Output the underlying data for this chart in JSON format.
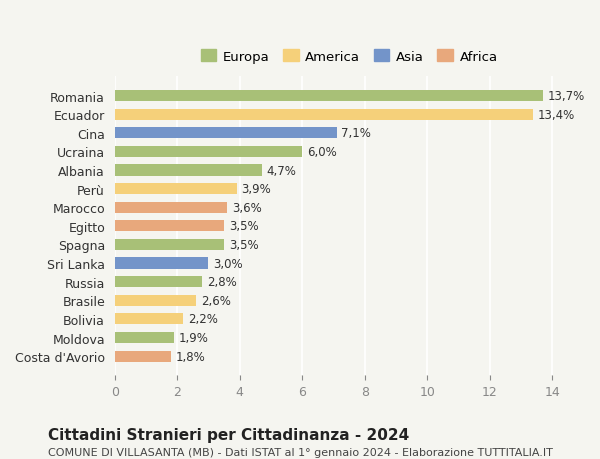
{
  "countries": [
    "Romania",
    "Ecuador",
    "Cina",
    "Ucraina",
    "Albania",
    "Perù",
    "Marocco",
    "Egitto",
    "Spagna",
    "Sri Lanka",
    "Russia",
    "Brasile",
    "Bolivia",
    "Moldova",
    "Costa d'Avorio"
  ],
  "values": [
    13.7,
    13.4,
    7.1,
    6.0,
    4.7,
    3.9,
    3.6,
    3.5,
    3.5,
    3.0,
    2.8,
    2.6,
    2.2,
    1.9,
    1.8
  ],
  "labels": [
    "13,7%",
    "13,4%",
    "7,1%",
    "6,0%",
    "4,7%",
    "3,9%",
    "3,6%",
    "3,5%",
    "3,5%",
    "3,0%",
    "2,8%",
    "2,6%",
    "2,2%",
    "1,9%",
    "1,8%"
  ],
  "continents": [
    "Europa",
    "America",
    "Asia",
    "Europa",
    "Europa",
    "America",
    "Africa",
    "Africa",
    "Europa",
    "Asia",
    "Europa",
    "America",
    "America",
    "Europa",
    "Africa"
  ],
  "continent_colors": {
    "Europa": "#a8c077",
    "America": "#f5d07a",
    "Asia": "#7394c9",
    "Africa": "#e8a87c"
  },
  "legend_order": [
    "Europa",
    "America",
    "Asia",
    "Africa"
  ],
  "background_color": "#f5f5f0",
  "xlim": [
    0,
    15
  ],
  "xticks": [
    0,
    2,
    4,
    6,
    8,
    10,
    12,
    14
  ],
  "title": "Cittadini Stranieri per Cittadinanza - 2024",
  "subtitle": "COMUNE DI VILLASANTA (MB) - Dati ISTAT al 1° gennaio 2024 - Elaborazione TUTTITALIA.IT",
  "title_fontsize": 11,
  "subtitle_fontsize": 8,
  "bar_height": 0.6,
  "grid_color": "#ffffff",
  "tick_color": "#888888",
  "label_fontsize": 8.5
}
